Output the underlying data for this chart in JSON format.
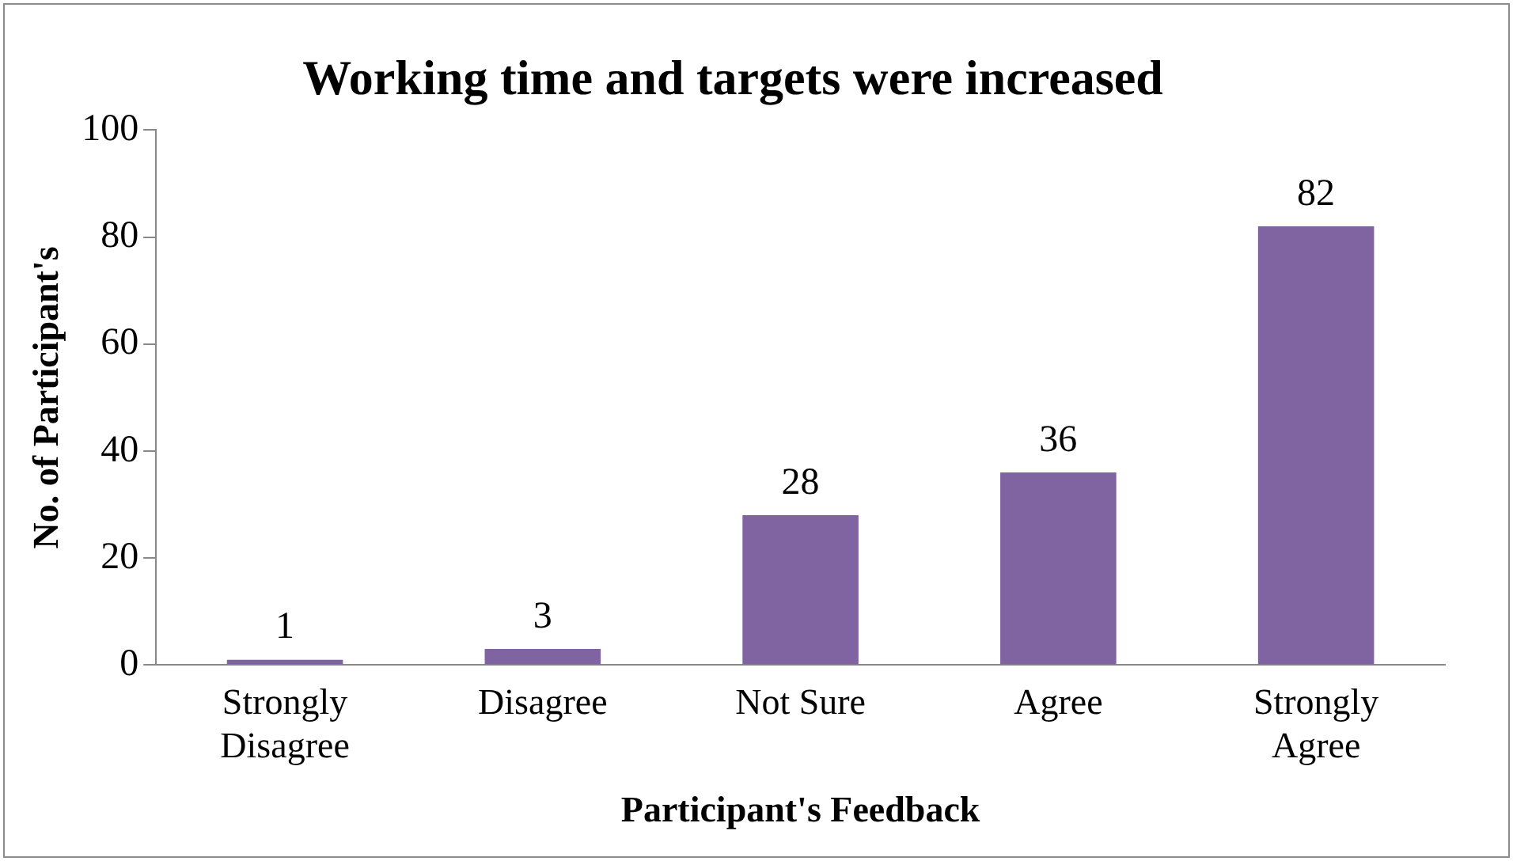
{
  "chart_data": {
    "type": "bar",
    "title": "Working time and targets were increased",
    "xlabel": "Participant's Feedback",
    "ylabel": "No. of Participant's",
    "categories": [
      "Strongly Disagree",
      "Disagree",
      "Not Sure",
      "Agree",
      "Strongly Agree"
    ],
    "values": [
      1,
      3,
      28,
      36,
      82
    ],
    "color": "#8064a2",
    "ylim": [
      0,
      100
    ],
    "yticks": [
      0,
      20,
      40,
      60,
      80,
      100
    ],
    "grid": false,
    "legend": false,
    "data_labels": true
  }
}
